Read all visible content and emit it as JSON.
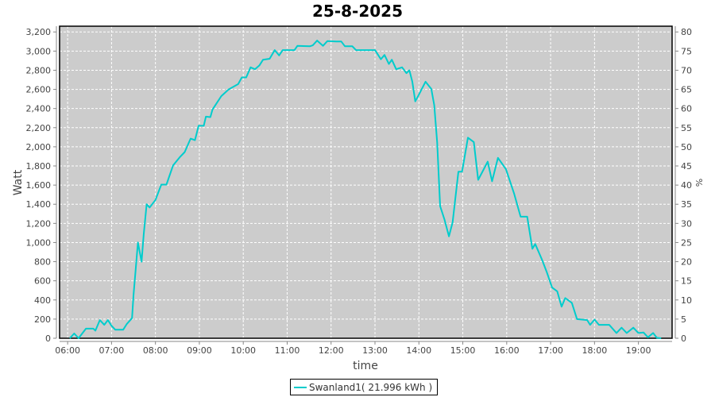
{
  "chart_data": {
    "type": "line",
    "title": "25-8-2025",
    "xlabel": "time",
    "ylabel": "Watt",
    "y2label": "%",
    "x_ticks": [
      "06:00",
      "07:00",
      "08:00",
      "09:00",
      "10:00",
      "11:00",
      "12:00",
      "13:00",
      "14:00",
      "15:00",
      "16:00",
      "17:00",
      "18:00",
      "19:00"
    ],
    "y_ticks": [
      0,
      200,
      400,
      600,
      800,
      1000,
      1200,
      1400,
      1600,
      1800,
      2000,
      2200,
      2400,
      2600,
      2800,
      3000,
      3200
    ],
    "y2_ticks": [
      0,
      5,
      10,
      15,
      20,
      25,
      30,
      35,
      40,
      45,
      50,
      55,
      60,
      65,
      70,
      75,
      80
    ],
    "xlim": [
      "05:49",
      "19:46"
    ],
    "ylim": [
      0,
      3260
    ],
    "y2lim": [
      0,
      81.5
    ],
    "grid": true,
    "legend_placement": "bottom",
    "colors": {
      "series": "#00cccc",
      "plot_background": "#cccccc",
      "grid": "#ffffff"
    },
    "series": [
      {
        "name": "Swanland1( 21.996 kWh )",
        "x": [
          "06:03",
          "06:09",
          "06:15",
          "06:25",
          "06:35",
          "06:38",
          "06:44",
          "06:50",
          "06:55",
          "07:00",
          "07:05",
          "07:16",
          "07:21",
          "07:28",
          "07:30",
          "07:33",
          "07:36",
          "07:41",
          "07:44",
          "07:48",
          "07:52",
          "08:00",
          "08:08",
          "08:15",
          "08:24",
          "08:33",
          "08:40",
          "08:48",
          "08:54",
          "08:59",
          "09:06",
          "09:09",
          "09:15",
          "09:18",
          "09:30",
          "09:40",
          "09:53",
          "09:58",
          "10:04",
          "10:10",
          "10:16",
          "10:22",
          "10:27",
          "10:36",
          "10:43",
          "10:49",
          "10:54",
          "11:10",
          "11:14",
          "11:31",
          "11:35",
          "11:41",
          "11:49",
          "11:55",
          "12:07",
          "12:14",
          "12:19",
          "12:29",
          "12:34",
          "13:00",
          "13:08",
          "13:13",
          "13:19",
          "13:23",
          "13:29",
          "13:37",
          "13:43",
          "13:47",
          "13:51",
          "13:55",
          "14:00",
          "14:09",
          "14:17",
          "14:21",
          "14:25",
          "14:29",
          "14:35",
          "14:41",
          "14:46",
          "14:54",
          "14:59",
          "15:07",
          "15:15",
          "15:21",
          "15:34",
          "15:40",
          "15:48",
          "15:59",
          "16:10",
          "16:19",
          "16:28",
          "16:35",
          "16:39",
          "16:48",
          "16:55",
          "17:02",
          "17:09",
          "17:15",
          "17:20",
          "17:29",
          "17:36",
          "17:50",
          "17:54",
          "18:00",
          "18:06",
          "18:20",
          "18:30",
          "18:37",
          "18:44",
          "18:53",
          "19:00",
          "19:07",
          "19:13",
          "19:20",
          "19:25",
          "19:31"
        ],
        "y": [
          0,
          50,
          0,
          100,
          100,
          80,
          190,
          140,
          190,
          130,
          90,
          90,
          150,
          210,
          445,
          720,
          1000,
          800,
          1085,
          1400,
          1365,
          1445,
          1605,
          1605,
          1805,
          1890,
          1945,
          2085,
          2070,
          2220,
          2220,
          2315,
          2310,
          2390,
          2530,
          2600,
          2655,
          2725,
          2725,
          2830,
          2810,
          2850,
          2910,
          2920,
          3010,
          2955,
          3010,
          3010,
          3055,
          3050,
          3060,
          3110,
          3055,
          3105,
          3100,
          3100,
          3050,
          3050,
          3010,
          3010,
          2915,
          2960,
          2865,
          2910,
          2810,
          2830,
          2770,
          2800,
          2680,
          2475,
          2545,
          2680,
          2605,
          2435,
          2045,
          1380,
          1240,
          1065,
          1210,
          1740,
          1740,
          2095,
          2050,
          1655,
          1845,
          1640,
          1885,
          1765,
          1515,
          1270,
          1270,
          935,
          985,
          825,
          685,
          530,
          490,
          330,
          420,
          370,
          200,
          190,
          140,
          195,
          140,
          140,
          55,
          110,
          55,
          110,
          55,
          60,
          10,
          55,
          5,
          0
        ]
      }
    ]
  }
}
